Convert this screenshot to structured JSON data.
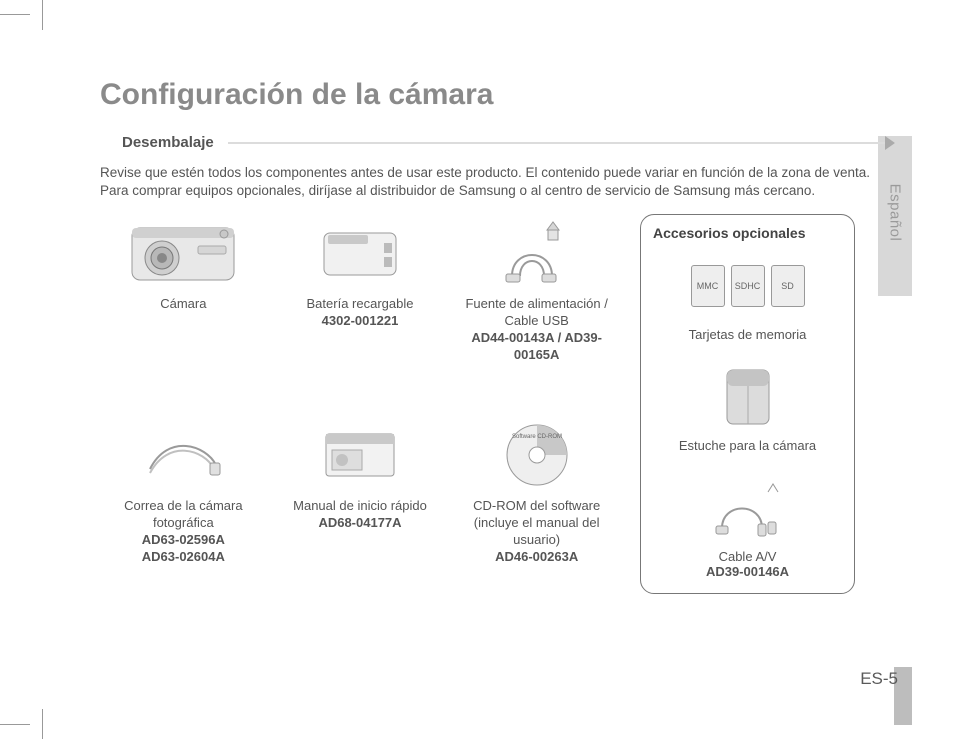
{
  "title": "Configuración de la cámara",
  "section": "Desembalaje",
  "intro": "Revise que estén todos los componentes antes de usar este producto. El contenido puede variar en función de la zona de venta. Para comprar equipos opcionales, diríjase al distribuidor de Samsung o al centro de servicio de Samsung más cercano.",
  "items": [
    {
      "name": "Cámara",
      "part": ""
    },
    {
      "name": "Batería recargable",
      "part": "4302-001221"
    },
    {
      "name": "Fuente de alimentación / Cable USB",
      "part": "AD44-00143A / AD39-00165A"
    },
    {
      "name": "Correa de la cámara fotográfica",
      "part": "AD63-02596A\nAD63-02604A"
    },
    {
      "name": "Manual de inicio rápido",
      "part": "AD68-04177A"
    },
    {
      "name": "CD-ROM del software (incluye el manual del usuario)",
      "part": "AD46-00263A"
    }
  ],
  "optional": {
    "title": "Accesorios opcionales",
    "items": [
      {
        "name": "Tarjetas de memoria",
        "part": "",
        "cards": [
          "MMC",
          "SDHC",
          "SD"
        ]
      },
      {
        "name": "Estuche para la cámara",
        "part": ""
      },
      {
        "name": "Cable A/V",
        "part": "AD39-00146A"
      }
    ]
  },
  "page_number": "ES-5",
  "language_tab": "Español"
}
